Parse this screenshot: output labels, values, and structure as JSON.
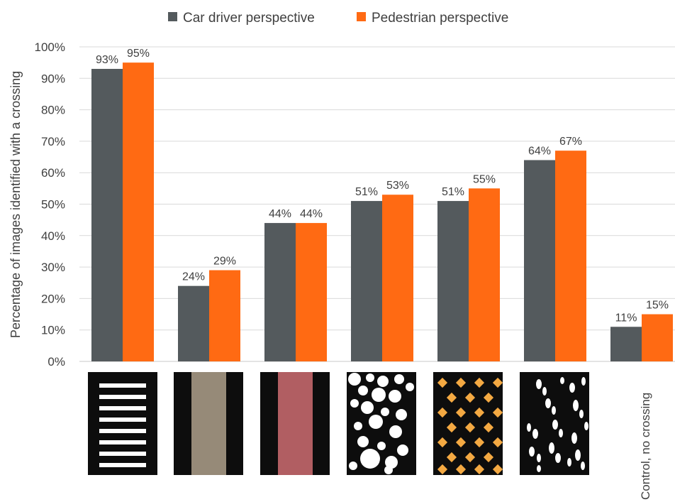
{
  "chart_data": {
    "type": "bar",
    "categories": [
      "",
      "",
      "",
      "",
      "",
      "",
      "Control, no crossing"
    ],
    "category_icons": [
      "zebra-stripes-icon",
      "beige-band-icon",
      "red-band-icon",
      "white-circles-icon",
      "orange-diamonds-icon",
      "footprints-icon",
      ""
    ],
    "series": [
      {
        "name": "Car driver perspective",
        "values": [
          93,
          24,
          44,
          51,
          51,
          64,
          11
        ],
        "labels": [
          "93%",
          "24%",
          "44%",
          "51%",
          "51%",
          "64%",
          "11%"
        ],
        "color": "#545a5d"
      },
      {
        "name": "Pedestrian perspective",
        "values": [
          95,
          29,
          44,
          53,
          55,
          67,
          15
        ],
        "labels": [
          "95%",
          "29%",
          "44%",
          "53%",
          "55%",
          "67%",
          "15%"
        ],
        "color": "#ff6a13"
      }
    ],
    "ylabel": "Percentage of images identified with a crossing",
    "xlabel": "",
    "ylim": [
      0,
      100
    ],
    "yticks": [
      "0%",
      "10%",
      "20%",
      "30%",
      "40%",
      "50%",
      "60%",
      "70%",
      "80%",
      "90%",
      "100%"
    ],
    "grid": true,
    "legend": "top"
  }
}
